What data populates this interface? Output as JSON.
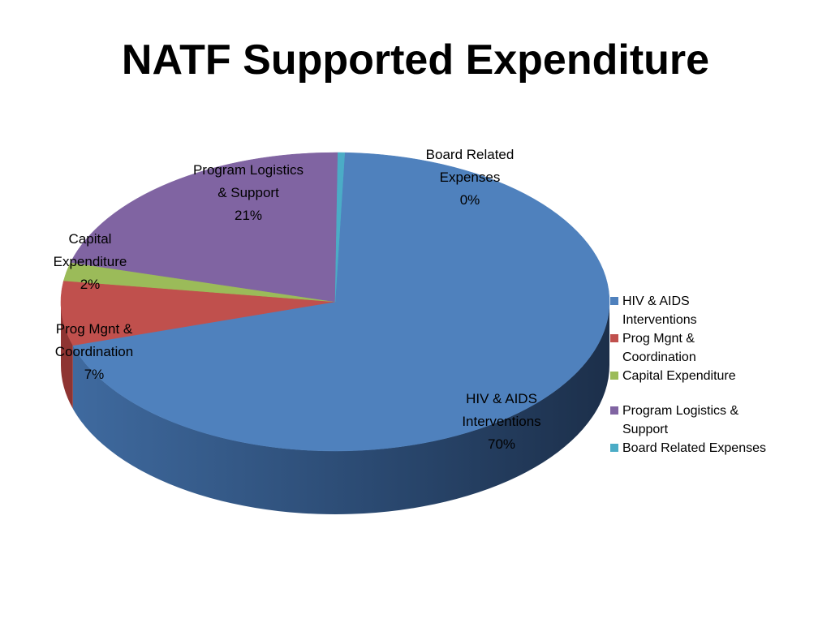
{
  "title": "NATF Supported Expenditure",
  "chart_data": {
    "type": "pie",
    "title": "NATF Supported Expenditure",
    "slices": [
      {
        "name": "HIV & AIDS Interventions",
        "value": 70,
        "label_lines": [
          "HIV & AIDS",
          "Interventions",
          "70%"
        ],
        "color": "#4F81BD",
        "side_color": "#3A6396"
      },
      {
        "name": "Prog Mgnt & Coordination",
        "value": 7,
        "label_lines": [
          "Prog Mgnt &",
          "Coordination",
          "7%"
        ],
        "color": "#C0504D",
        "side_color": "#8E3432"
      },
      {
        "name": "Capital Expenditure",
        "value": 2,
        "label_lines": [
          "Capital",
          "Expenditure",
          "2%"
        ],
        "color": "#9BBB59",
        "side_color": "#718A3E"
      },
      {
        "name": "Program Logistics & Support",
        "value": 21,
        "label_lines": [
          "Program Logistics",
          "& Support",
          "21%"
        ],
        "color": "#8064A2",
        "side_color": "#5D4877"
      },
      {
        "name": "Board Related Expenses",
        "value": 0.4,
        "label_lines": [
          "Board Related",
          "Expenses",
          "0%"
        ],
        "color": "#4BACC6",
        "side_color": "#327E92"
      }
    ],
    "legend": {
      "position": "right",
      "items": [
        {
          "lines": [
            "HIV & AIDS",
            "Interventions"
          ],
          "color": "#4F81BD"
        },
        {
          "lines": [
            "Prog Mgnt &",
            "Coordination"
          ],
          "color": "#C0504D"
        },
        {
          "lines": [
            "Capital Expenditure"
          ],
          "color": "#9BBB59"
        },
        {
          "lines": [
            "Program Logistics &",
            "Support"
          ],
          "color": "#8064A2"
        },
        {
          "lines": [
            "Board Related Expenses"
          ],
          "color": "#4BACC6"
        }
      ]
    }
  }
}
